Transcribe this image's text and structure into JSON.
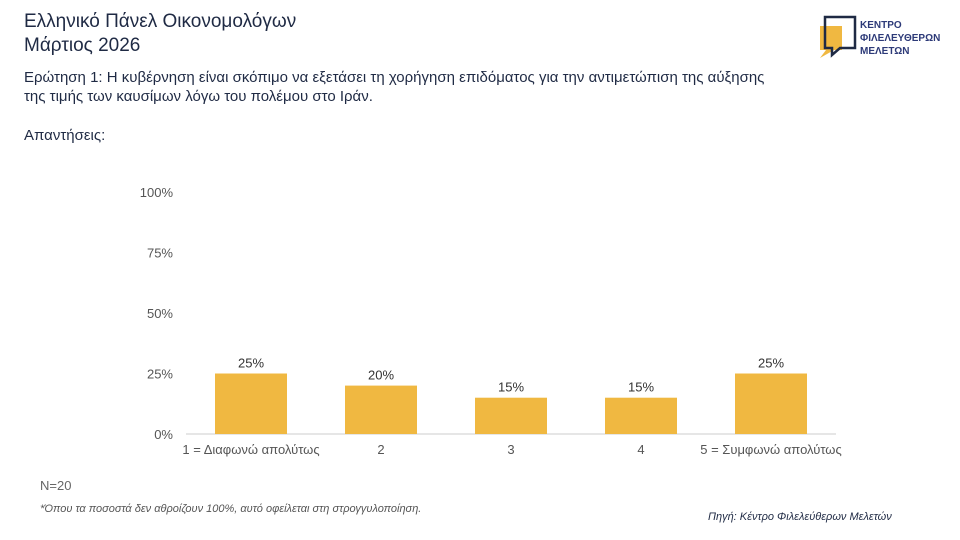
{
  "header": {
    "title_line1": "Ελληνικό Πάνελ Οικονομολόγων",
    "title_line2": "Μάρτιος 2026",
    "logo_text": [
      "ΚΕΝΤΡΟ",
      "ΦΙΛΕΛΕΥΘΕΡΩΝ",
      "ΜΕΛΕΤΩΝ"
    ]
  },
  "question_line1": "Ερώτηση 1: Η κυβέρνηση είναι σκόπιμο να εξετάσει τη χορήγηση επιδόματος για την αντιμετώπιση της αύξησης",
  "question_line2": "της τιμής των καυσίμων λόγω του πολέμου στο Ιράν.",
  "answers_label": "Απαντήσεις:",
  "footer": {
    "n": "N=20",
    "note": "*Όπου τα ποσοστά δεν αθροίζουν 100%, αυτό οφείλεται στη στρογγυλοποίηση.",
    "source": "Πηγή: Κέντρο Φιλελεύθερων Μελετών"
  },
  "colors": {
    "bar": "#f0b841",
    "text": "#1f2a44"
  },
  "chart_data": {
    "type": "bar",
    "categories": [
      "1 = Διαφωνώ απολύτως",
      "2",
      "3",
      "4",
      "5 = Συμφωνώ απολύτως"
    ],
    "values": [
      25,
      20,
      15,
      15,
      25
    ],
    "data_labels": [
      "25%",
      "20%",
      "15%",
      "15%",
      "25%"
    ],
    "ylim": [
      0,
      100
    ],
    "yticks": [
      0,
      25,
      50,
      75,
      100
    ],
    "ytick_labels": [
      "0%",
      "25%",
      "50%",
      "75%",
      "100%"
    ],
    "grid": false,
    "title": "",
    "xlabel": "",
    "ylabel": ""
  }
}
